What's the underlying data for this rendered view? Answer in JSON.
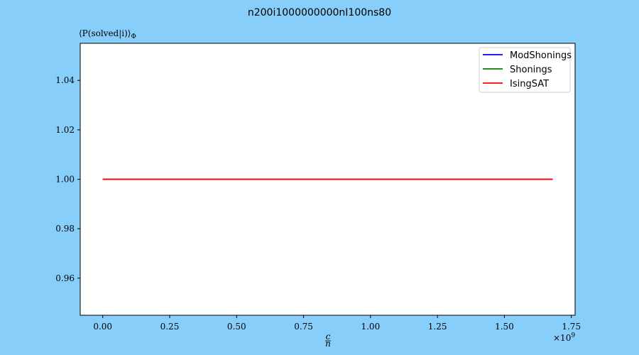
{
  "chart_data": {
    "type": "line",
    "title": "n200i1000000000nI100ns80",
    "ylabel": "⟨P(solved|i)⟩",
    "ylabel_sub": "Φ",
    "xlabel_num": "c",
    "xlabel_den": "n",
    "x_multiplier": "×10",
    "x_multiplier_exp": "9",
    "xlim": [
      -0.084,
      1.764
    ],
    "ylim": [
      0.945,
      1.055
    ],
    "xticks": [
      0.0,
      0.25,
      0.5,
      0.75,
      1.0,
      1.25,
      1.5,
      1.75
    ],
    "xtick_labels": [
      "0.00",
      "0.25",
      "0.50",
      "0.75",
      "1.00",
      "1.25",
      "1.50",
      "1.75"
    ],
    "yticks": [
      0.96,
      0.98,
      1.0,
      1.02,
      1.04
    ],
    "ytick_labels": [
      "0.96",
      "0.98",
      "1.00",
      "1.02",
      "1.04"
    ],
    "grid": false,
    "legend_position": "top-right",
    "series": [
      {
        "name": "ModShonings",
        "color": "#0000ff",
        "x": [
          0.0,
          1.68
        ],
        "y": [
          1.0,
          1.0
        ]
      },
      {
        "name": "Shonings",
        "color": "#008000",
        "x": [
          0.0,
          1.68
        ],
        "y": [
          1.0,
          1.0
        ]
      },
      {
        "name": "IsingSAT",
        "color": "#ff0000",
        "x": [
          0.0,
          1.68
        ],
        "y": [
          1.0,
          1.0
        ]
      }
    ]
  }
}
